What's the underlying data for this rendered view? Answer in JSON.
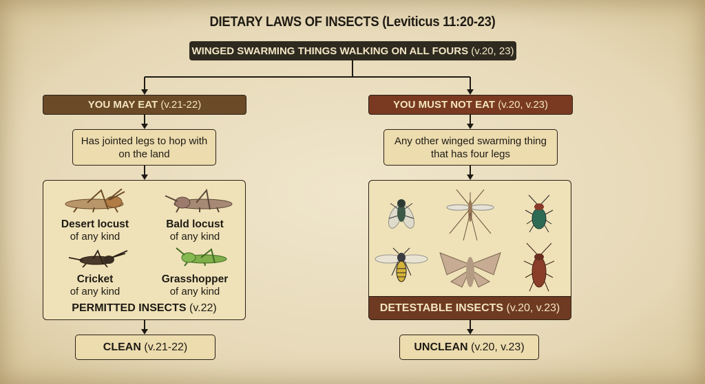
{
  "title": "DIETARY LAWS OF INSECTS (Leviticus 11:20-23)",
  "root": {
    "label": "WINGED SWARMING THINGS WALKING ON ALL FOURS",
    "ref": "(v.20, 23)"
  },
  "left": {
    "header": {
      "label": "YOU MAY EAT",
      "ref": "(v.21-22)",
      "color": "#6b4a28"
    },
    "criterion": "Has jointed legs to hop with on the land",
    "insects": [
      {
        "name": "Desert locust",
        "sub": "of any kind"
      },
      {
        "name": "Bald locust",
        "sub": "of any kind"
      },
      {
        "name": "Cricket",
        "sub": "of any kind"
      },
      {
        "name": "Grasshopper",
        "sub": "of any kind"
      }
    ],
    "panel_label": {
      "label": "PERMITTED INSECTS",
      "ref": "(v.22)"
    },
    "result": {
      "label": "CLEAN",
      "ref": "(v.21-22)"
    }
  },
  "right": {
    "header": {
      "label": "YOU MUST NOT EAT",
      "ref": "(v.20, v.23)",
      "color": "#7a3a22"
    },
    "criterion": "Any other winged swarming thing that has four legs",
    "insects": [
      "fly",
      "mosquito",
      "beetle",
      "wasp",
      "moth",
      "cockroach"
    ],
    "panel_label": {
      "label": "DETESTABLE INSECTS",
      "ref": "(v.20, v.23)"
    },
    "result": {
      "label": "UNCLEAN",
      "ref": "(v.20, v.23)"
    }
  }
}
